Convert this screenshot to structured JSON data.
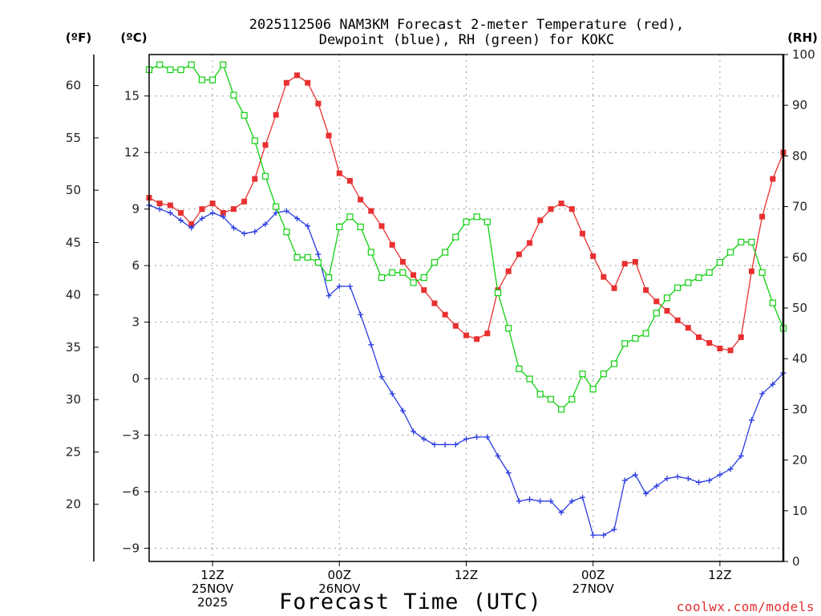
{
  "title_line1": "2025112506 NAM3KM Forecast 2-meter Temperature (red),",
  "title_line2": "Dewpoint (blue), RH (green) for KOKC",
  "credit": "coolwx.com/models",
  "colors": {
    "temp": "#e83030",
    "dewpoint": "#2a3ce0",
    "rh": "#10d010"
  },
  "chart_data": {
    "type": "line",
    "title": "2025112506 NAM3KM Forecast 2-meter Temperature (red), Dewpoint (blue), RH (green) for KOKC",
    "xlabel": "Forecast Time (UTC)",
    "x_units": "forecast hour from 2025-11-25 06Z",
    "xlim": [
      0,
      60
    ],
    "x_ticks": [
      {
        "x": 6,
        "lines": [
          "12Z",
          "25NOV",
          "2025"
        ]
      },
      {
        "x": 18,
        "lines": [
          "00Z",
          "26NOV"
        ]
      },
      {
        "x": 30,
        "lines": [
          "12Z"
        ]
      },
      {
        "x": 42,
        "lines": [
          "00Z",
          "27NOV"
        ]
      },
      {
        "x": 54,
        "lines": [
          "12Z"
        ]
      }
    ],
    "left_axis_C": {
      "label": "(ºC)",
      "ylim": [
        -9.7,
        17.2
      ],
      "ticks": [
        15,
        12,
        9,
        6,
        3,
        0,
        -3,
        -6,
        -9
      ]
    },
    "left_axis_F": {
      "label": "(ºF)",
      "ticks": [
        60,
        55,
        50,
        45,
        40,
        35,
        30,
        25,
        20
      ]
    },
    "right_axis_RH": {
      "label": "(RH)",
      "ylim": [
        0,
        100
      ],
      "ticks": [
        100,
        90,
        80,
        70,
        60,
        50,
        40,
        30,
        20,
        10,
        0
      ]
    },
    "series": [
      {
        "name": "Temperature",
        "axis": "C",
        "marker": "filled-square",
        "x": [
          0,
          1,
          2,
          3,
          4,
          5,
          6,
          7,
          8,
          9,
          10,
          11,
          12,
          13,
          14,
          15,
          16,
          17,
          18,
          19,
          20,
          21,
          22,
          23,
          24,
          25,
          26,
          27,
          28,
          29,
          30,
          31,
          32,
          33,
          34,
          35,
          36,
          37,
          38,
          39,
          40,
          41,
          42,
          43,
          44,
          45,
          46,
          47,
          48,
          49,
          50,
          51,
          52,
          53,
          54,
          55,
          56,
          57,
          58,
          59,
          60
        ],
        "values": [
          9.6,
          9.3,
          9.2,
          8.8,
          8.2,
          9.0,
          9.3,
          8.8,
          9.0,
          9.4,
          10.6,
          12.4,
          14.0,
          15.7,
          16.1,
          15.7,
          14.6,
          12.9,
          10.9,
          10.5,
          9.5,
          8.9,
          8.1,
          7.1,
          6.2,
          5.5,
          4.7,
          4.0,
          3.4,
          2.8,
          2.3,
          2.1,
          2.4,
          4.7,
          5.7,
          6.6,
          7.2,
          8.4,
          9.0,
          9.3,
          9.0,
          7.7,
          6.5,
          5.4,
          4.8,
          6.1,
          6.2,
          4.7,
          4.1,
          3.6,
          3.1,
          2.7,
          2.2,
          1.9,
          1.6,
          1.5,
          2.2,
          5.7,
          8.6,
          10.6,
          12.0
        ]
      },
      {
        "name": "Dewpoint",
        "axis": "C",
        "marker": "plus",
        "x": [
          0,
          1,
          2,
          3,
          4,
          5,
          6,
          7,
          8,
          9,
          10,
          11,
          12,
          13,
          14,
          15,
          16,
          17,
          18,
          19,
          20,
          21,
          22,
          23,
          24,
          25,
          26,
          27,
          28,
          29,
          30,
          31,
          32,
          33,
          34,
          35,
          36,
          37,
          38,
          39,
          40,
          41,
          42,
          43,
          44,
          45,
          46,
          47,
          48,
          49,
          50,
          51,
          52,
          53,
          54,
          55,
          56,
          57,
          58,
          59,
          60
        ],
        "values": [
          9.2,
          9.0,
          8.8,
          8.4,
          8.0,
          8.5,
          8.8,
          8.6,
          8.0,
          7.7,
          7.8,
          8.2,
          8.8,
          8.9,
          8.5,
          8.1,
          6.6,
          4.4,
          4.9,
          4.9,
          3.4,
          1.8,
          0.1,
          -0.8,
          -1.7,
          -2.8,
          -3.2,
          -3.5,
          -3.5,
          -3.5,
          -3.2,
          -3.1,
          -3.1,
          -4.1,
          -5.0,
          -6.5,
          -6.4,
          -6.5,
          -6.5,
          -7.1,
          -6.5,
          -6.3,
          -8.3,
          -8.3,
          -8.0,
          -5.4,
          -5.1,
          -6.1,
          -5.7,
          -5.3,
          -5.2,
          -5.3,
          -5.5,
          -5.4,
          -5.1,
          -4.8,
          -4.1,
          -2.2,
          -0.8,
          -0.3,
          0.3
        ]
      },
      {
        "name": "RH",
        "axis": "RH",
        "marker": "open-square",
        "x": [
          0,
          1,
          2,
          3,
          4,
          5,
          6,
          7,
          8,
          9,
          10,
          11,
          12,
          13,
          14,
          15,
          16,
          17,
          18,
          19,
          20,
          21,
          22,
          23,
          24,
          25,
          26,
          27,
          28,
          29,
          30,
          31,
          32,
          33,
          34,
          35,
          36,
          37,
          38,
          39,
          40,
          41,
          42,
          43,
          44,
          45,
          46,
          47,
          48,
          49,
          50,
          51,
          52,
          53,
          54,
          55,
          56,
          57,
          58,
          59,
          60
        ],
        "values": [
          97,
          98,
          97,
          97,
          98,
          95,
          95,
          98,
          92,
          88,
          83,
          76,
          70,
          65,
          60,
          60,
          59,
          56,
          66,
          68,
          66,
          61,
          56,
          57,
          57,
          55,
          56,
          59,
          61,
          64,
          67,
          68,
          67,
          53,
          46,
          38,
          36,
          33,
          32,
          30,
          32,
          37,
          34,
          37,
          39,
          43,
          44,
          45,
          49,
          52,
          54,
          55,
          56,
          57,
          59,
          61,
          63,
          63,
          57,
          51,
          46
        ]
      }
    ]
  }
}
